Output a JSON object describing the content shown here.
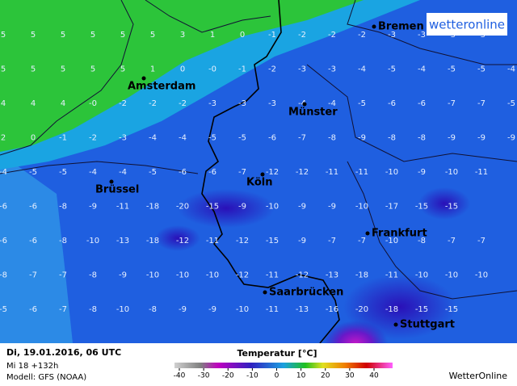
{
  "logo": "wetteronline",
  "grid": [
    [
      "5",
      "5",
      "5",
      "5",
      "5",
      "5",
      "3",
      "1",
      "0",
      "-1",
      "-2",
      "-2",
      "-2",
      "-3",
      "-3",
      "-3",
      "-3"
    ],
    [
      "5",
      "5",
      "5",
      "5",
      "5",
      "1",
      "0",
      "-0",
      "-1",
      "-2",
      "-3",
      "-3",
      "-4",
      "-5",
      "-4",
      "-5",
      "-5",
      "-4"
    ],
    [
      "4",
      "4",
      "4",
      "-0",
      "-2",
      "-2",
      "-2",
      "-3",
      "-3",
      "-3",
      "-4",
      "-4",
      "-5",
      "-6",
      "-6",
      "-7",
      "-7",
      "-5"
    ],
    [
      "2",
      "0",
      "-1",
      "-2",
      "-3",
      "-4",
      "-4",
      "-5",
      "-5",
      "-6",
      "-7",
      "-8",
      "-9",
      "-8",
      "-8",
      "-9",
      "-9",
      "-9"
    ],
    [
      "-4",
      "-5",
      "-5",
      "-4",
      "-4",
      "-5",
      "-6",
      "-6",
      "-7",
      "-12",
      "-12",
      "-11",
      "-11",
      "-10",
      "-9",
      "-10",
      "-11"
    ],
    [
      "-6",
      "-6",
      "-8",
      "-9",
      "-11",
      "-18",
      "-20",
      "-15",
      "-9",
      "-10",
      "-9",
      "-9",
      "-10",
      "-17",
      "-15",
      "-15"
    ],
    [
      "-6",
      "-6",
      "-8",
      "-10",
      "-13",
      "-18",
      "-12",
      "-11",
      "-12",
      "-15",
      "-9",
      "-7",
      "-7",
      "-10",
      "-8",
      "-7",
      "-7"
    ],
    [
      "-8",
      "-7",
      "-7",
      "-8",
      "-9",
      "-10",
      "-10",
      "-10",
      "-12",
      "-11",
      "-12",
      "-13",
      "-18",
      "-11",
      "-10",
      "-10",
      "-10"
    ],
    [
      "-5",
      "-6",
      "-7",
      "-8",
      "-10",
      "-8",
      "-9",
      "-9",
      "-10",
      "-11",
      "-13",
      "-16",
      "-20",
      "-18",
      "-15",
      "-15"
    ]
  ],
  "cities": [
    "Bremen",
    "Amsterdam",
    "Münster",
    "Brüssel",
    "Köln",
    "Frankfurt",
    "Saarbrücken",
    "Stuttgart"
  ],
  "footer": {
    "date": "Di, 19.01.2016, 06 UTC",
    "run": "Mi 18 +132h",
    "model": "Modell: GFS (NOAA)",
    "brand": "WetterOnline"
  },
  "legend": {
    "title": "Temperatur [°C]",
    "ticks": [
      -40,
      -30,
      -20,
      -10,
      0,
      10,
      20,
      30,
      40
    ]
  }
}
